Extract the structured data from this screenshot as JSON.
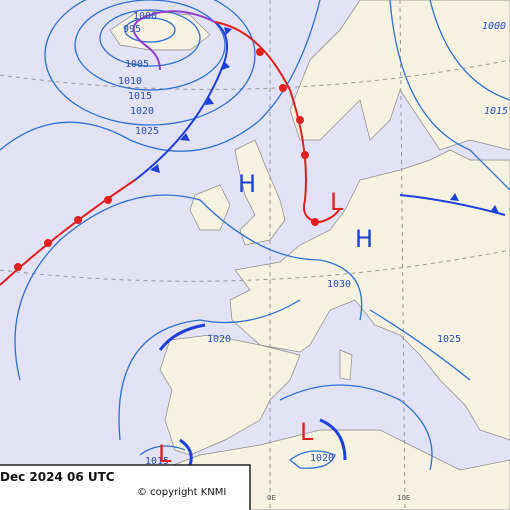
{
  "isobar_labels": [
    "1000",
    "995",
    "1005",
    "1010",
    "1015",
    "1020",
    "1025",
    "1000",
    "1015",
    "1030",
    "1020",
    "1025",
    "1015",
    "1020"
  ],
  "pressure_centers": [
    "H",
    "H",
    "L",
    "L",
    "L"
  ],
  "footer": {
    "date": "Dec 2024 06 UTC",
    "copyright": "© copyright KNMI"
  },
  "longitude_labels": [
    "0E",
    "10E"
  ]
}
